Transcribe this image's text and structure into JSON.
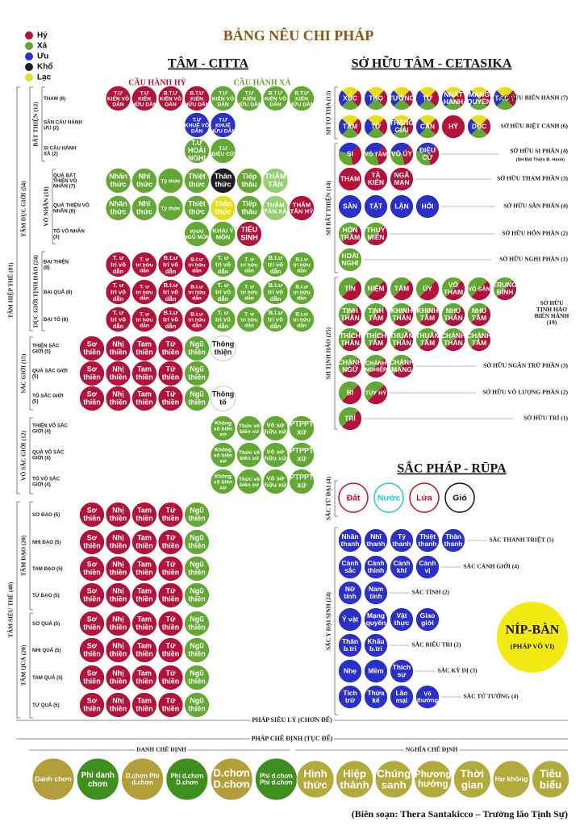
{
  "title": "BẢNG NÊU CHI PHÁP",
  "legend": [
    {
      "label": "Hỷ",
      "color": "#b3123b"
    },
    {
      "label": "Xả",
      "color": "#62a832"
    },
    {
      "label": "Ưu",
      "color": "#2b30c9"
    },
    {
      "label": "Khổ",
      "color": "#1e1e1e"
    },
    {
      "label": "Lạc",
      "color": "#e6de1c"
    }
  ],
  "citta": {
    "title": "TÂM - CITTA",
    "headers": [
      "CẦU HÀNH HỶ",
      "CẦU HÀNH XẢ"
    ],
    "groups": [
      "BẤT THIỆN (12)",
      "VÔ NHÂN (18)",
      "DỤC GIỚI TỊNH HẢO (24)",
      "TÂM DỤC GIỚI (54)",
      "SẮC GIỚI (15)",
      "VÔ SẮC GIỚI (12)",
      "TÂM HIỆP THẾ (81)",
      "TÂM ĐẠO (20)",
      "TÂM QUẢ (20)",
      "TÂM SIÊU THẾ (40)"
    ],
    "rows": [
      {
        "label": "THAM (8)",
        "items": [
          "T.Ư KIẾN VÔ DẪN",
          "T.Ư KIẾN HỮU DẪN",
          "B.T.Ư KIẾN VÔ DẪN",
          "B.T.Ư KIẾN HỮU DẪN",
          "T.Ư KIẾN VÔ DẪN",
          "T.Ư KIẾN HỮU DẪN",
          "B.T.Ư KIẾN VÔ DẪN",
          "B.T.Ư KIẾN HỮU DẪN"
        ],
        "colors": [
          "#b3123b",
          "#b3123b",
          "#b3123b",
          "#b3123b",
          "#62a832",
          "#62a832",
          "#62a832",
          "#62a832"
        ]
      },
      {
        "label": "SÂN CẦU HÀNH ƯU (2)",
        "items": [
          "T.Ư KHUỂ VÔ DẪN",
          "T.Ư KHUỂ HỮU DẪN"
        ],
        "colors": [
          "#2b30c9",
          "#2b30c9"
        ]
      },
      {
        "label": "SI CẦU HÀNH XẢ (2)",
        "items": [
          "T.Ư HOÀI NGHI",
          "T.Ư ĐIỆU CỬ"
        ],
        "colors": [
          "#62a832",
          "#62a832"
        ]
      },
      {
        "label": "QUẢ BẤT THIỆN VÔ NHÂN (7)",
        "items": [
          "Nhãn thức",
          "Nhĩ thức",
          "Tỷ thức",
          "Thiệt thức",
          "Thân thức",
          "Tiếp thâu",
          "THẨM TẤN"
        ],
        "colors": [
          "#62a832",
          "#62a832",
          "#62a832",
          "#62a832",
          "#1e1e1e",
          "#62a832",
          "#94cf70"
        ]
      },
      {
        "label": "QUẢ THIỆN VÔ NHÂN (8)",
        "items": [
          "Nhãn thức",
          "Nhĩ thức",
          "Tỷ thức",
          "Thiệt thức",
          "Thân thức",
          "Tiếp thâu",
          "THẨM TẤN XẢ",
          "THẨM TẤN HỶ"
        ],
        "colors": [
          "#62a832",
          "#62a832",
          "#62a832",
          "#62a832",
          "#e6de1c",
          "#62a832",
          "#94cf70",
          "#b3123b"
        ]
      },
      {
        "label": "TỐ VÔ NHÂN (3)",
        "items": [
          "KHAI NGŨ MÔN",
          "KHAI Ý MÔN",
          "TIẾU SINH"
        ],
        "colors": [
          "#62a832",
          "#62a832",
          "#b3123b"
        ]
      },
      {
        "label": "ĐẠI THIỆN (8)",
        "items": [
          "T. ư tri vô dẫn",
          "T. ư tri hữu dẫn",
          "B.t.ư tri vô dẫn",
          "B.t.ư tri hữu dẫn",
          "T. ư tri vô dẫn",
          "T. ư tri hữu dẫn",
          "B.t.ư tri vô dẫn",
          "B.t.ư tri hữu dẫn"
        ],
        "colors": [
          "#b3123b",
          "#b3123b",
          "#b3123b",
          "#b3123b",
          "#62a832",
          "#62a832",
          "#62a832",
          "#62a832"
        ]
      },
      {
        "label": "ĐẠI QUẢ (8)",
        "items": [
          "T. ư tri vô dẫn",
          "T. ư tri hữu dẫn",
          "B.t.ư tri vô dẫn",
          "B.t.ư tri hữu dẫn",
          "T. ư tri vô dẫn",
          "T. ư tri hữu dẫn",
          "B.t.ư tri vô dẫn",
          "B.t.ư tri hữu dẫn"
        ],
        "colors": [
          "#b3123b",
          "#b3123b",
          "#b3123b",
          "#b3123b",
          "#62a832",
          "#62a832",
          "#62a832",
          "#62a832"
        ]
      },
      {
        "label": "ĐẠI TỐ (8)",
        "items": [
          "T. ư tri vô dẫn",
          "T. ư tri hữu dẫn",
          "B.t.ư tri vô dẫn",
          "B.t.ư tri hữu dẫn",
          "T. ư tri vô dẫn",
          "T. ư tri hữu dẫn",
          "B.t.ư tri vô dẫn",
          "B.t.ư tri hữu dẫn"
        ],
        "colors": [
          "#b3123b",
          "#b3123b",
          "#b3123b",
          "#b3123b",
          "#62a832",
          "#62a832",
          "#62a832",
          "#62a832"
        ]
      },
      {
        "label": "THIỆN SẮC GIỚI (5)",
        "items": [
          "Sơ thiền",
          "Nhị thiền",
          "Tam thiền",
          "Tứ thiền",
          "Ngũ thiền",
          "Thông thiện"
        ],
        "colors": [
          "#b3123b",
          "#b3123b",
          "#b3123b",
          "#b3123b",
          "#62a832",
          "#ffffff"
        ]
      },
      {
        "label": "QUẢ SẮC GIỚI (5)",
        "items": [
          "Sơ thiền",
          "Nhị thiền",
          "Tam thiền",
          "Tứ thiền",
          "Ngũ thiền"
        ],
        "colors": [
          "#b3123b",
          "#b3123b",
          "#b3123b",
          "#b3123b",
          "#62a832"
        ]
      },
      {
        "label": "TỐ SẮC GIỚI (5)",
        "items": [
          "Sơ thiền",
          "Nhị thiền",
          "Tam thiền",
          "Tứ thiền",
          "Ngũ thiền",
          "Thông tố"
        ],
        "colors": [
          "#b3123b",
          "#b3123b",
          "#b3123b",
          "#b3123b",
          "#62a832",
          "#ffffff"
        ]
      },
      {
        "label": "THIỆN VÔ SẮC GIỚI (4)",
        "items": [
          "Không vô biên xứ",
          "Thức vô biên xứ",
          "Vô sở hữu xứ",
          "PTPPT xứ"
        ],
        "colors": [
          "#62a832",
          "#62a832",
          "#62a832",
          "#62a832"
        ]
      },
      {
        "label": "QUẢ VÔ SẮC GIỚI (4)",
        "items": [
          "Không vô biên xứ",
          "Thức vô biên xứ",
          "Vô sở hữu xứ",
          "PTPPT xứ"
        ],
        "colors": [
          "#62a832",
          "#62a832",
          "#62a832",
          "#62a832"
        ]
      },
      {
        "label": "TỐ VÔ SẮC GIỚI (4)",
        "items": [
          "Không vô biên xứ",
          "Thức vô biên xứ",
          "Vô sở hữu xứ",
          "PTPPT xứ"
        ],
        "colors": [
          "#62a832",
          "#62a832",
          "#62a832",
          "#62a832"
        ]
      },
      {
        "label": "SƠ ĐẠO (5)",
        "items": [
          "Sơ thiền",
          "Nhị thiền",
          "Tam thiền",
          "Tứ thiền",
          "Ngũ thiền"
        ],
        "colors": [
          "#b3123b",
          "#b3123b",
          "#b3123b",
          "#b3123b",
          "#62a832"
        ]
      },
      {
        "label": "NHỊ ĐẠO (5)",
        "items": [
          "Sơ thiền",
          "Nhị thiền",
          "Tam thiền",
          "Tứ thiền",
          "Ngũ thiền"
        ],
        "colors": [
          "#b3123b",
          "#b3123b",
          "#b3123b",
          "#b3123b",
          "#62a832"
        ]
      },
      {
        "label": "TAM ĐẠO (5)",
        "items": [
          "Sơ thiền",
          "Nhị thiền",
          "Tam thiền",
          "Tứ thiền",
          "Ngũ thiền"
        ],
        "colors": [
          "#b3123b",
          "#b3123b",
          "#b3123b",
          "#b3123b",
          "#62a832"
        ]
      },
      {
        "label": "TỨ ĐẠO (5)",
        "items": [
          "Sơ thiền",
          "Nhị thiền",
          "Tam thiền",
          "Tứ thiền",
          "Ngũ thiền"
        ],
        "colors": [
          "#b3123b",
          "#b3123b",
          "#b3123b",
          "#b3123b",
          "#62a832"
        ]
      },
      {
        "label": "SƠ QUẢ (5)",
        "items": [
          "Sơ thiền",
          "Nhị thiền",
          "Tam thiền",
          "Tứ thiền",
          "Ngũ thiền"
        ],
        "colors": [
          "#b3123b",
          "#b3123b",
          "#b3123b",
          "#b3123b",
          "#62a832"
        ]
      },
      {
        "label": "NHỊ QUẢ (5)",
        "items": [
          "Sơ thiền",
          "Nhị thiền",
          "Tam thiền",
          "Tứ thiền",
          "Ngũ thiền"
        ],
        "colors": [
          "#b3123b",
          "#b3123b",
          "#b3123b",
          "#b3123b",
          "#62a832"
        ]
      },
      {
        "label": "TAM QUẢ (5)",
        "items": [
          "Sơ thiền",
          "Nhị thiền",
          "Tam thiền",
          "Tứ thiền",
          "Ngũ thiền"
        ],
        "colors": [
          "#b3123b",
          "#b3123b",
          "#b3123b",
          "#b3123b",
          "#62a832"
        ]
      },
      {
        "label": "TỨ QUẢ (5)",
        "items": [
          "Sơ thiền",
          "Nhị thiền",
          "Tam thiền",
          "Tứ thiền",
          "Ngũ thiền"
        ],
        "colors": [
          "#b3123b",
          "#b3123b",
          "#b3123b",
          "#b3123b",
          "#62a832"
        ]
      }
    ]
  },
  "cetasika": {
    "title": "SỞ HỮU TÂM - CETASIKA",
    "groups": [
      "SH TỢ THA (13)",
      "SH BẤT THIỆN (14)",
      "SH TỊNH HẢO (25)"
    ],
    "rows": [
      {
        "label": "SỞ HỮU BIẾN HÀNH (7)",
        "items": [
          "XÚC",
          "THỌ",
          "TƯỞNG",
          "TƯ",
          "NHẤT HÀNH",
          "MẠNG QUYỀN",
          "TÁC Ý"
        ],
        "colors": [
          [
            "#b3123b",
            "#62a832",
            "#2b30c9",
            "#e6de1c"
          ],
          [
            "#b3123b",
            "#62a832",
            "#2b30c9",
            "#e6de1c"
          ],
          [
            "#b3123b",
            "#62a832",
            "#2b30c9",
            "#e6de1c"
          ],
          [
            "#b3123b",
            "#62a832",
            "#2b30c9",
            "#e6de1c"
          ],
          [
            "#b3123b",
            "#62a832",
            "#2b30c9",
            "#e6de1c"
          ],
          [
            "#b3123b",
            "#62a832",
            "#2b30c9",
            "#e6de1c"
          ],
          [
            "#b3123b",
            "#62a832",
            "#2b30c9",
            "#e6de1c"
          ]
        ]
      },
      {
        "label": "SỞ HỮU BIỆT CẢNH (6)",
        "items": [
          "TẦM",
          "TỨ",
          "THẮNG GIẢI",
          "CẦN",
          "HỶ",
          "DỤC"
        ],
        "colors": [
          [
            "#b3123b",
            "#62a832",
            "#2b30c9",
            "#e6de1c"
          ],
          [
            "#b3123b",
            "#62a832",
            "#2b30c9",
            "#e6de1c"
          ],
          [
            "#b3123b",
            "#62a832",
            "#2b30c9",
            "#e6de1c"
          ],
          [
            "#b3123b",
            "#62a832",
            "#2b30c9",
            "#e6de1c"
          ],
          "#b3123b",
          [
            "#b3123b",
            "#62a832",
            "#2b30c9",
            "#e6de1c"
          ]
        ]
      },
      {
        "label": "SỞ HỮU SI PHẦN (4)",
        "note": "(SH Bất Thiện B. Hành)",
        "items": [
          "SI",
          "VÔ TÀM",
          "VÔ ÚY",
          "ĐIỆU CỬ"
        ],
        "colors": [
          [
            "#b3123b",
            "#62a832",
            "#2b30c9"
          ],
          [
            "#b3123b",
            "#62a832",
            "#2b30c9"
          ],
          [
            "#b3123b",
            "#62a832",
            "#2b30c9"
          ],
          [
            "#b3123b",
            "#62a832",
            "#2b30c9"
          ]
        ]
      },
      {
        "label": "SỞ HỮU THAM PHẦN (3)",
        "items": [
          "THAM",
          "TÀ KIẾN",
          "NGÃ MẠN"
        ],
        "colors": [
          "#b3123b",
          "#b3123b",
          "#b3123b"
        ]
      },
      {
        "label": "SỞ HỮU SÂN PHẦN (4)",
        "items": [
          "SÂN",
          "TẬT",
          "LẬN",
          "HỐI"
        ],
        "colors": [
          "#2b30c9",
          "#2b30c9",
          "#2b30c9",
          "#2b30c9"
        ]
      },
      {
        "label": "SỞ HỮU HÔN PHẦN (2)",
        "items": [
          "HÔN TRẦM",
          "THỤY MIÊN"
        ],
        "colors": [
          [
            "#b3123b",
            "#62a832"
          ],
          [
            "#b3123b",
            "#62a832"
          ]
        ]
      },
      {
        "label": "SỞ HỮU NGHI PHẦN (1)",
        "items": [
          "HOÀI NGHI"
        ],
        "colors": [
          "#62a832"
        ]
      },
      {
        "label": "SỞ HỮU TỊNH HẢO BIẾN HÀNH (19)",
        "items": [
          "TÍN",
          "NIỆM",
          "TÀM",
          "ÚY",
          "VÔ THAM",
          "VÔ SÂN",
          "TRUNG BÌNH"
        ],
        "colors": [
          [
            "#b3123b",
            "#62a832"
          ],
          [
            "#b3123b",
            "#62a832"
          ],
          [
            "#b3123b",
            "#62a832"
          ],
          [
            "#b3123b",
            "#62a832"
          ],
          [
            "#b3123b",
            "#62a832"
          ],
          [
            "#b3123b",
            "#62a832"
          ],
          [
            "#b3123b",
            "#62a832"
          ]
        ]
      },
      {
        "items": [
          "TỊNH THÂN",
          "TỊNH TÂM",
          "KHINH THÂN",
          "KHINH TÂM",
          "NHU THÂN",
          "NHU TÂM"
        ],
        "colors": [
          [
            "#b3123b",
            "#62a832"
          ],
          [
            "#b3123b",
            "#62a832"
          ],
          [
            "#b3123b",
            "#62a832"
          ],
          [
            "#b3123b",
            "#62a832"
          ],
          [
            "#b3123b",
            "#62a832"
          ],
          [
            "#b3123b",
            "#62a832"
          ]
        ]
      },
      {
        "items": [
          "THÍCH THÂN",
          "THÍCH TÂM",
          "THUẦN THÂN",
          "THUẦN TÂM",
          "CHÁNH THÂN",
          "CHÁNH TÂM"
        ],
        "colors": [
          [
            "#b3123b",
            "#62a832"
          ],
          [
            "#b3123b",
            "#62a832"
          ],
          [
            "#b3123b",
            "#62a832"
          ],
          [
            "#b3123b",
            "#62a832"
          ],
          [
            "#b3123b",
            "#62a832"
          ],
          [
            "#b3123b",
            "#62a832"
          ]
        ]
      },
      {
        "label": "SỞ HỮU NGĂN TRỪ PHẦN (3)",
        "items": [
          "CHÁNH NGỮ",
          "CHÁNH NGHIỆP",
          "CHÁNH MẠNG"
        ],
        "colors": [
          [
            "#b3123b",
            "#62a832"
          ],
          [
            "#b3123b",
            "#62a832"
          ],
          [
            "#b3123b",
            "#62a832"
          ]
        ]
      },
      {
        "label": "SỞ HỮU VÔ LƯỢNG PHẦN (2)",
        "items": [
          "BI",
          "TÙY HỶ"
        ],
        "colors": [
          [
            "#b3123b",
            "#62a832"
          ],
          [
            "#b3123b",
            "#62a832"
          ]
        ]
      },
      {
        "label": "SỞ HỮU TRÍ (1)",
        "items": [
          "TRÍ"
        ],
        "colors": [
          [
            "#b3123b",
            "#62a832"
          ]
        ]
      }
    ]
  },
  "rupa": {
    "title": "SẮC PHÁP - RŪPA",
    "groups": [
      "SẮC TỨ ĐẠI (4)",
      "SẮC Y ĐẠI SINH (24)"
    ],
    "elements": {
      "items": [
        "Đất",
        "Nước",
        "Lửa",
        "Gió"
      ],
      "colors": [
        "#c0102a",
        "#27c6e0",
        "#c0102a",
        "#111111"
      ]
    },
    "color": "#2b30c9",
    "rows": [
      {
        "label": "SẮC THANH TRIỆT (5)",
        "items": [
          "Nhãn thanh",
          "Nhĩ thanh",
          "Tỷ thanh",
          "Thiệt thanh",
          "Thân thanh"
        ]
      },
      {
        "label": "SẮC CẢNH GIỚI (4)",
        "items": [
          "Cảnh sắc",
          "Cảnh thinh",
          "Cảnh khí",
          "Cảnh vị"
        ]
      },
      {
        "label": "SẮC TÍNH (2)",
        "items": [
          "Nữ tính",
          "Nam tính"
        ]
      },
      {
        "items": [
          "Ý vật",
          "Mạng quyền",
          "Vật thực",
          "Giao giới"
        ]
      },
      {
        "label": "SẮC BIỂU TRI (2)",
        "items": [
          "Thân b.tri",
          "Khẩu b.tri"
        ]
      },
      {
        "label": "SẮC KỲ DỊ (3)",
        "items": [
          "Nhẹ",
          "Mềm",
          "Thích sự"
        ]
      },
      {
        "label": "SẮC TỨ TƯỚNG (4)",
        "items": [
          "Tích trữ",
          "Thừa kế",
          "Lão mại",
          "Vô thường"
        ]
      }
    ]
  },
  "nibbana": {
    "title": "NÍP-BÀN",
    "subtitle": "(PHÁP VÔ VI)",
    "color": "#f2ea12"
  },
  "footer": {
    "paramattha": "PHÁP SIÊU LÝ (CHƠN ĐẾ)",
    "pannatti": "PHÁP CHẾ ĐỊNH (TỤC ĐẾ)",
    "name_concepts": {
      "title": "DANH CHẾ ĐỊNH",
      "items": [
        "Danh chơn",
        "Phi danh chơn",
        "D.chơn Phi d.chơn",
        "Phi d.chơn D.chơn",
        "D.chơn D.chơn",
        "Phi d.chơn Phi d.chơn"
      ],
      "colors": [
        "#b39e3c",
        "#3f8f1f",
        "#b39e3c",
        "#3f8f1f",
        "#b39e3c",
        "#3f8f1f"
      ]
    },
    "meaning_concepts": {
      "title": "NGHĨA CHẾ ĐỊNH",
      "items": [
        "Hình thức",
        "Hiệp thành",
        "Chúng sanh",
        "Phương hướng",
        "Thời gian",
        "Hư không",
        "Tiêu biểu"
      ],
      "color": "#b3aa3c"
    }
  },
  "credit": "(Biên soạn: Thera Santakicco – Trưởng lão Tịnh Sự)"
}
